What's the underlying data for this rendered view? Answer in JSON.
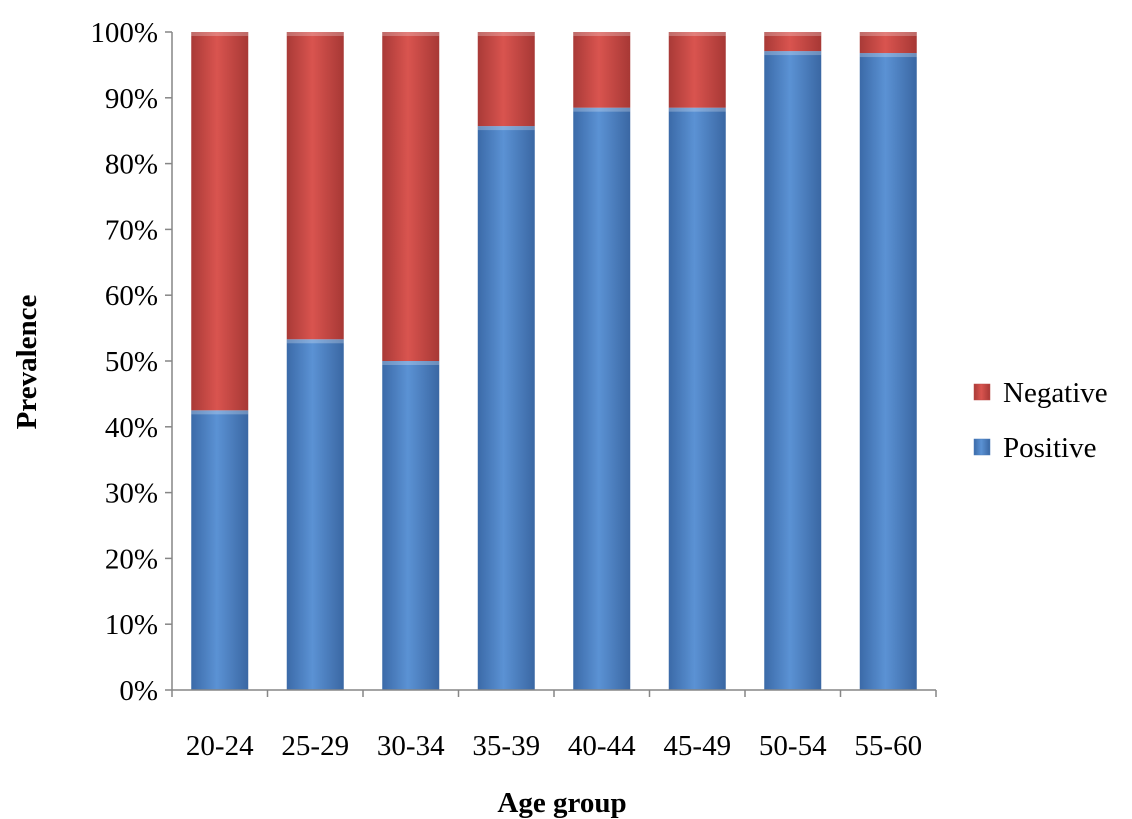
{
  "chart_data": {
    "type": "bar",
    "stacked": true,
    "title": "",
    "xlabel": "Age group",
    "ylabel": "Prevalence",
    "categories": [
      "20-24",
      "25-29",
      "30-34",
      "35-39",
      "40-44",
      "45-49",
      "50-54",
      "55-60"
    ],
    "series": [
      {
        "name": "Positive",
        "values": [
          42.5,
          53.3,
          50.0,
          85.7,
          88.5,
          88.5,
          97.1,
          96.8
        ],
        "color": "#4a7ebb"
      },
      {
        "name": "Negative",
        "values": [
          57.5,
          46.7,
          50.0,
          14.3,
          11.5,
          11.5,
          2.9,
          3.2
        ],
        "color": "#be4b48"
      }
    ],
    "ylim": [
      0,
      100
    ],
    "yticks": [
      "0%",
      "10%",
      "20%",
      "30%",
      "40%",
      "50%",
      "60%",
      "70%",
      "80%",
      "90%",
      "100%"
    ],
    "grid": false,
    "legend": {
      "placement": "right",
      "items": [
        "Negative",
        "Positive"
      ]
    }
  }
}
